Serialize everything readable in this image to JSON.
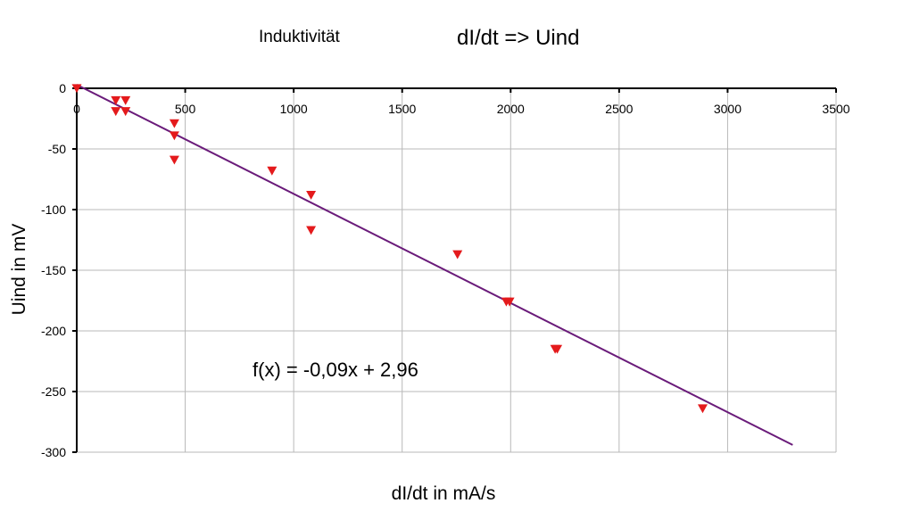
{
  "chart_data": {
    "type": "scatter",
    "subtitle": "Induktivität",
    "title": "dI/dt => Uind",
    "xlabel": "dI/dt in mA/s",
    "ylabel": "Uind in mV",
    "xlim": [
      0,
      3500
    ],
    "ylim": [
      -300,
      0
    ],
    "x_ticks": [
      0,
      500,
      1000,
      1500,
      2000,
      2500,
      3000,
      3500
    ],
    "y_ticks": [
      0,
      -50,
      -100,
      -150,
      -200,
      -250,
      -300
    ],
    "x_tick_labels": [
      "0",
      "500",
      "1000",
      "1500",
      "2000",
      "2500",
      "3000",
      "3500"
    ],
    "y_tick_labels": [
      "0",
      "-50",
      "-100",
      "-150",
      "-200",
      "-250",
      "-300"
    ],
    "grid": true,
    "marker_color": "#e41a1c",
    "trendline_color": "#6a1b7a",
    "points": [
      {
        "x": 0,
        "y": 0
      },
      {
        "x": 180,
        "y": -10
      },
      {
        "x": 180,
        "y": -19
      },
      {
        "x": 225,
        "y": -10
      },
      {
        "x": 225,
        "y": -19
      },
      {
        "x": 450,
        "y": -29
      },
      {
        "x": 450,
        "y": -39
      },
      {
        "x": 450,
        "y": -59
      },
      {
        "x": 900,
        "y": -68
      },
      {
        "x": 1080,
        "y": -88
      },
      {
        "x": 1080,
        "y": -117
      },
      {
        "x": 1755,
        "y": -137
      },
      {
        "x": 1980,
        "y": -176
      },
      {
        "x": 1995,
        "y": -176
      },
      {
        "x": 2205,
        "y": -215
      },
      {
        "x": 2215,
        "y": -215
      },
      {
        "x": 2885,
        "y": -264
      }
    ],
    "trendline": {
      "slope": -0.09,
      "intercept": 2.96,
      "x_range": [
        0,
        3300
      ],
      "equation": "f(x) = -0,09x + 2,96"
    }
  }
}
